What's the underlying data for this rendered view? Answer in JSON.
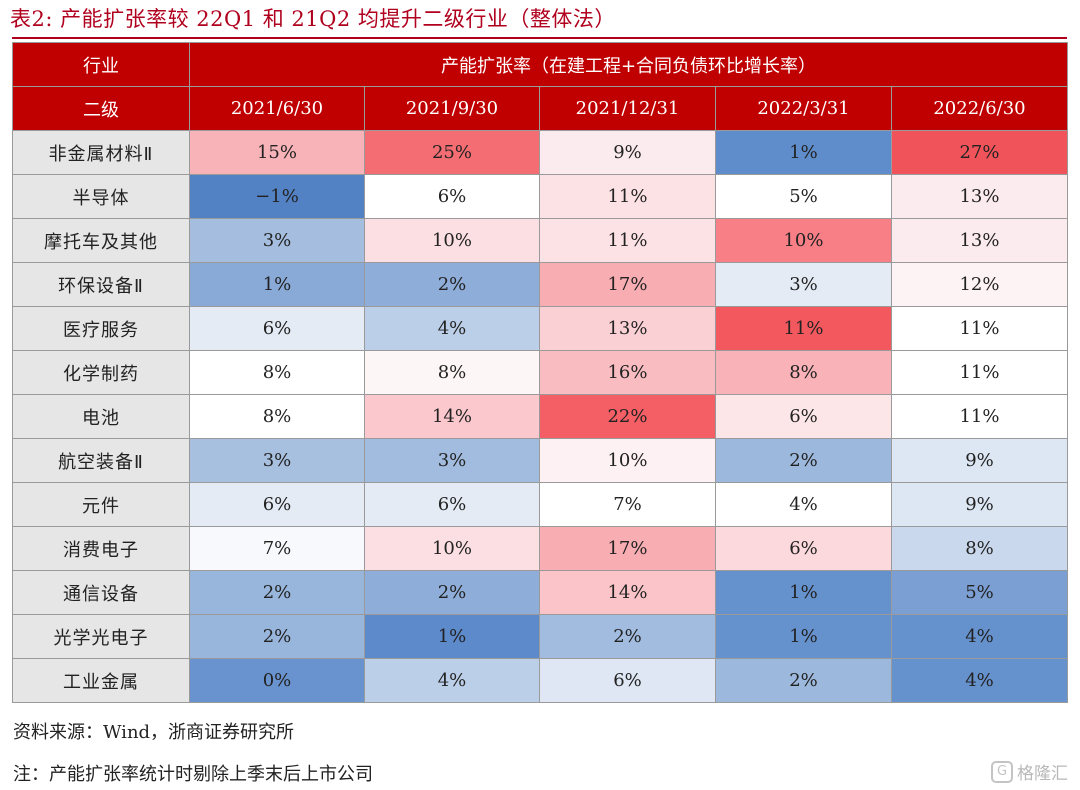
{
  "title": "表2:  产能扩张率较 22Q1 和 21Q2 均提升二级行业（整体法）",
  "table": {
    "header1": {
      "industry": "行业",
      "metric": "产能扩张率（在建工程+合同负债环比增长率）"
    },
    "header2": {
      "level": "二级",
      "dates": [
        "2021/6/30",
        "2021/9/30",
        "2021/12/31",
        "2022/3/31",
        "2022/6/30"
      ]
    },
    "rows": [
      {
        "name": "非金属材料Ⅱ",
        "cells": [
          "15%",
          "25%",
          "9%",
          "1%",
          "27%"
        ],
        "colors": [
          "#f8b3b8",
          "#f46d73",
          "#fcebee",
          "#5f8dcb",
          "#f0545a"
        ]
      },
      {
        "name": "半导体",
        "cells": [
          "−1%",
          "6%",
          "11%",
          "5%",
          "13%"
        ],
        "colors": [
          "#5382c4",
          "#ffffff",
          "#fde2e5",
          "#ffffff",
          "#fcebee"
        ]
      },
      {
        "name": "摩托车及其他",
        "cells": [
          "3%",
          "10%",
          "11%",
          "10%",
          "13%"
        ],
        "colors": [
          "#a5bedf",
          "#fcdfe2",
          "#fde2e5",
          "#f77f85",
          "#fcebee"
        ]
      },
      {
        "name": "环保设备Ⅱ",
        "cells": [
          "1%",
          "2%",
          "17%",
          "3%",
          "12%"
        ],
        "colors": [
          "#89a9d7",
          "#8eadd9",
          "#f8adb2",
          "#e4ebf5",
          "#fdf3f5"
        ]
      },
      {
        "name": "医疗服务",
        "cells": [
          "6%",
          "4%",
          "13%",
          "11%",
          "11%"
        ],
        "colors": [
          "#e4ebf5",
          "#bccfe8",
          "#fbd0d4",
          "#f2585e",
          "#ffffff"
        ]
      },
      {
        "name": "化学制药",
        "cells": [
          "8%",
          "8%",
          "16%",
          "8%",
          "11%"
        ],
        "colors": [
          "#ffffff",
          "#fdf6f7",
          "#f9bcc0",
          "#f9b3b8",
          "#ffffff"
        ]
      },
      {
        "name": "电池",
        "cells": [
          "8%",
          "14%",
          "22%",
          "6%",
          "11%"
        ],
        "colors": [
          "#ffffff",
          "#fbc9cd",
          "#f35f65",
          "#fde6e8",
          "#ffffff"
        ]
      },
      {
        "name": "航空装备Ⅱ",
        "cells": [
          "3%",
          "3%",
          "10%",
          "2%",
          "9%"
        ],
        "colors": [
          "#a7c0e0",
          "#a2bcdf",
          "#fdf1f3",
          "#9cb8dd",
          "#dde6f3"
        ]
      },
      {
        "name": "元件",
        "cells": [
          "6%",
          "6%",
          "7%",
          "4%",
          "9%"
        ],
        "colors": [
          "#e4ebf5",
          "#e4ebf5",
          "#ffffff",
          "#ffffff",
          "#dde6f3"
        ]
      },
      {
        "name": "消费电子",
        "cells": [
          "7%",
          "10%",
          "17%",
          "6%",
          "8%"
        ],
        "colors": [
          "#f7f9fc",
          "#fcdfe2",
          "#f8adb2",
          "#fcd9dc",
          "#c9d8ed"
        ]
      },
      {
        "name": "通信设备",
        "cells": [
          "2%",
          "2%",
          "14%",
          "1%",
          "5%"
        ],
        "colors": [
          "#98b5dc",
          "#8eadd9",
          "#fbc4c8",
          "#6591cd",
          "#7b9fd3"
        ]
      },
      {
        "name": "光学光电子",
        "cells": [
          "2%",
          "1%",
          "2%",
          "1%",
          "4%"
        ],
        "colors": [
          "#98b5dc",
          "#5d8acb",
          "#a2bcdf",
          "#6591cd",
          "#6591cd"
        ]
      },
      {
        "name": "工业金属",
        "cells": [
          "0%",
          "4%",
          "6%",
          "2%",
          "4%"
        ],
        "colors": [
          "#6993ce",
          "#bccfe8",
          "#dfe7f4",
          "#9cb8dd",
          "#6591cd"
        ]
      }
    ]
  },
  "source": "资料来源：Wind，浙商证券研究所",
  "note": "注：产能扩张率统计时剔除上季末后上市公司",
  "watermark": {
    "mark": "G",
    "text": "格隆汇"
  }
}
